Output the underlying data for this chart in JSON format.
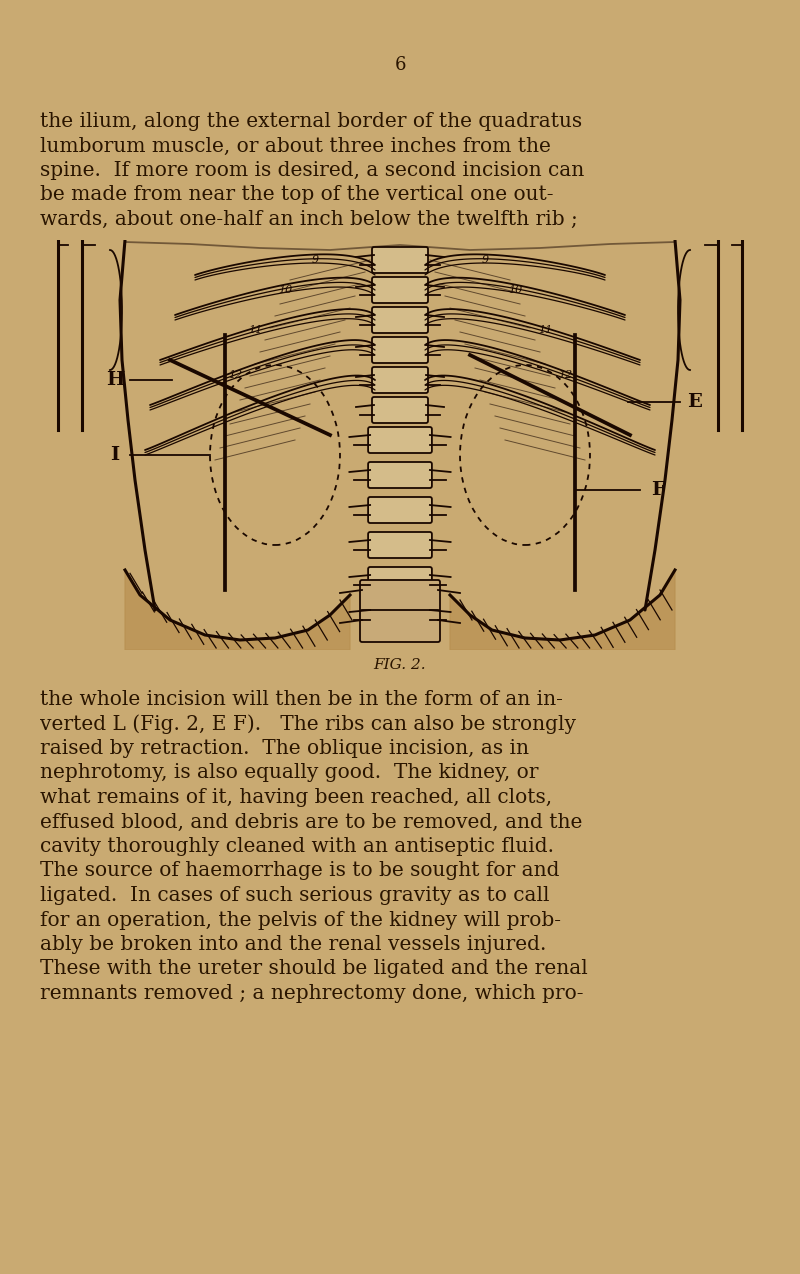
{
  "background_color": "#c9aa72",
  "page_number": "6",
  "text_color": "#2a1500",
  "top_paragraph_lines": [
    "the ilium, along the external border of the quadratus",
    "lumborum muscle, or about three inches from the",
    "spine.  If more room is desired, a second incision can",
    "be made from near the top of the vertical one out-",
    "wards, about one-half an inch below the twelfth rib ;"
  ],
  "caption": "FIG. 2.",
  "bottom_paragraph_lines": [
    "the whole incision will then be in the form of an in-",
    "verted L (Fig. 2, E F).   The ribs can also be strongly",
    "raised by retraction.  The oblique incision, as in",
    "nephrotomy, is also equally good.  The kidney, or",
    "what remains of it, having been reached, all clots,",
    "effused blood, and debris are to be removed, and the",
    "cavity thoroughly cleaned with an antiseptic fluid.",
    "The source of haemorrhage is to be sought for and",
    "ligated.  In cases of such serious gravity as to call",
    "for an operation, the pelvis of the kidney will prob-",
    "ably be broken into and the renal vessels injured.",
    "These with the ureter should be ligated and the renal",
    "remnants removed ; a nephrectomy done, which pro-"
  ],
  "font_size_body": 14.5,
  "font_size_caption": 11,
  "font_size_page_num": 13
}
